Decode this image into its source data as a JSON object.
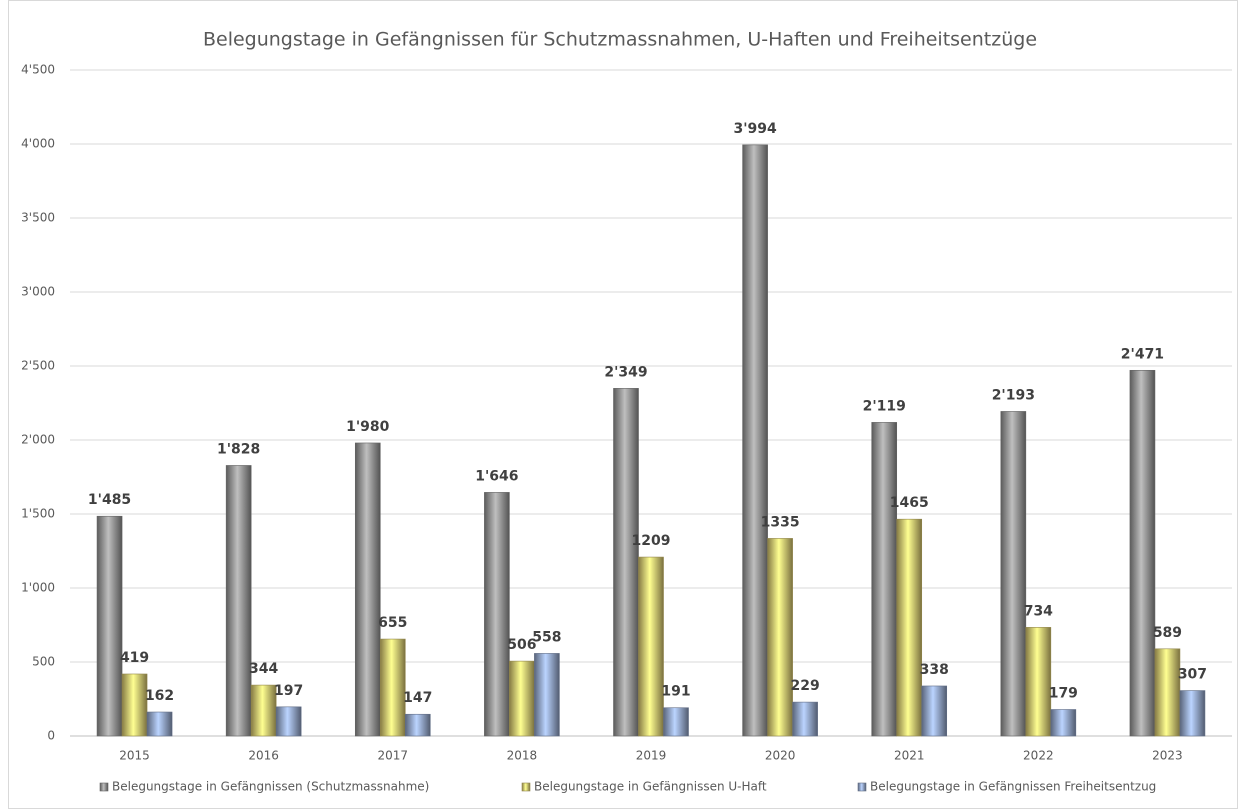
{
  "chart_data": {
    "type": "bar",
    "title": "Belegungstage in Gefängnissen für Schutzmassnahmen, U-Haften und Freiheitsentzüge",
    "categories": [
      "2015",
      "2016",
      "2017",
      "2018",
      "2019",
      "2020",
      "2021",
      "2022",
      "2023"
    ],
    "series": [
      {
        "name": "Belegungstage in Gefängnissen (Schutzmassnahme)",
        "color": "#a6a6a6",
        "values": [
          1485,
          1828,
          1980,
          1646,
          2349,
          3994,
          2119,
          2193,
          2471
        ],
        "value_labels": [
          "1'485",
          "1'828",
          "1'980",
          "1'646",
          "2'349",
          "3'994",
          "2'119",
          "2'193",
          "2'471"
        ]
      },
      {
        "name": "Belegungstage in Gefängnissen U-Haft",
        "color": "#f3df7e",
        "values": [
          419,
          344,
          655,
          506,
          1209,
          1335,
          1465,
          734,
          589
        ]
      },
      {
        "name": "Belegungstage in Gefängnissen Freiheitsentzug",
        "color": "#a3b8df",
        "values": [
          162,
          197,
          147,
          558,
          191,
          229,
          338,
          179,
          307
        ]
      }
    ],
    "ylim": [
      0,
      4500
    ],
    "yticks": [
      0,
      500,
      {
        "value": 1000,
        "label": "1'000"
      },
      {
        "value": 1500,
        "label": "1'500"
      },
      {
        "value": 2000,
        "label": "2'000"
      },
      {
        "value": 2500,
        "label": "2'500"
      },
      {
        "value": 3000,
        "label": "3'000"
      },
      {
        "value": 3500,
        "label": "3'500"
      },
      {
        "value": 4000,
        "label": "4'000"
      },
      {
        "value": 4500,
        "label": "4'500"
      }
    ],
    "grid": true,
    "legend": "bottom"
  }
}
